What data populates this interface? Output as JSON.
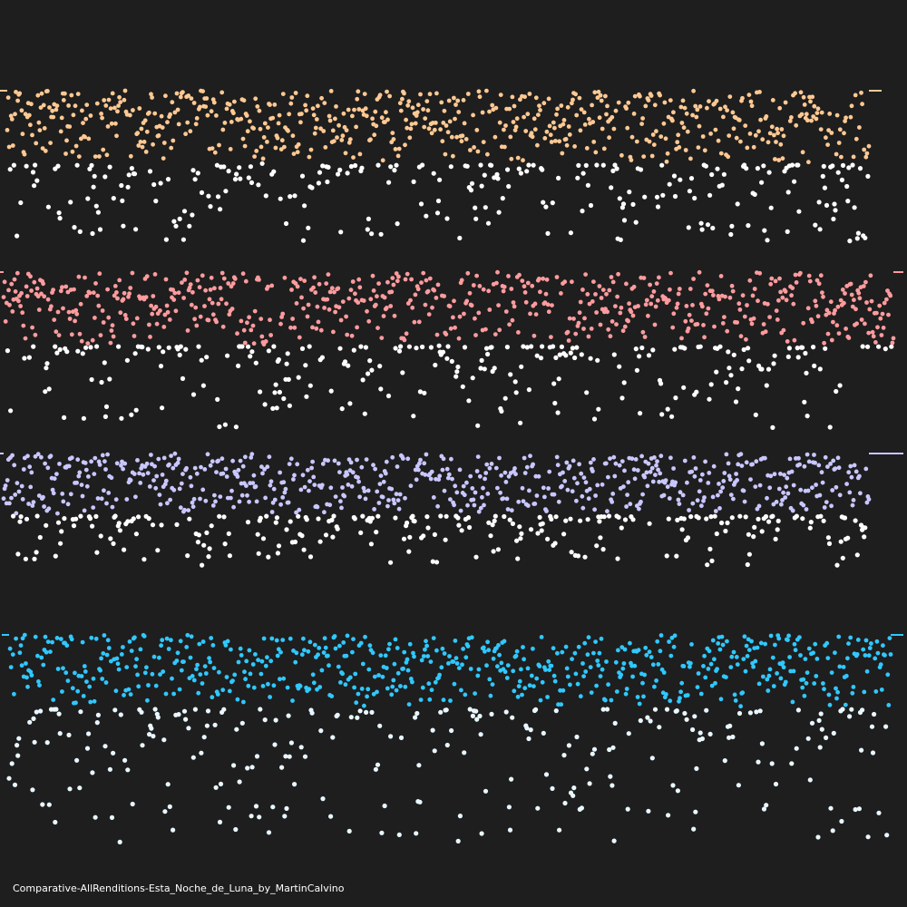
{
  "caption": "Comparative-AllRenditions-Esta_Noche_de_Luna_by_MartinCalvino",
  "background": "#1e1e1e",
  "chart_data": {
    "type": "scatter",
    "title": "",
    "xlabel": "",
    "ylabel": "",
    "grid": false,
    "legend": "none",
    "x_range": [
      0,
      1
    ],
    "y_range": [
      0,
      1
    ],
    "dots_per_series": 900,
    "series": [
      {
        "above_color": "#ffc993",
        "below_color": "#ffffff",
        "baseline": 0.5,
        "seed": 11
      },
      {
        "above_color": "#ff9b9e",
        "below_color": "#ffffff",
        "baseline": 0.5,
        "seed": 23
      },
      {
        "above_color": "#c9c7ff",
        "below_color": "#ffffff",
        "baseline": 0.5,
        "seed": 37
      },
      {
        "above_color": "#30c8ff",
        "below_color": "#e9f7ff",
        "baseline": 0.5,
        "seed": 51
      }
    ]
  }
}
